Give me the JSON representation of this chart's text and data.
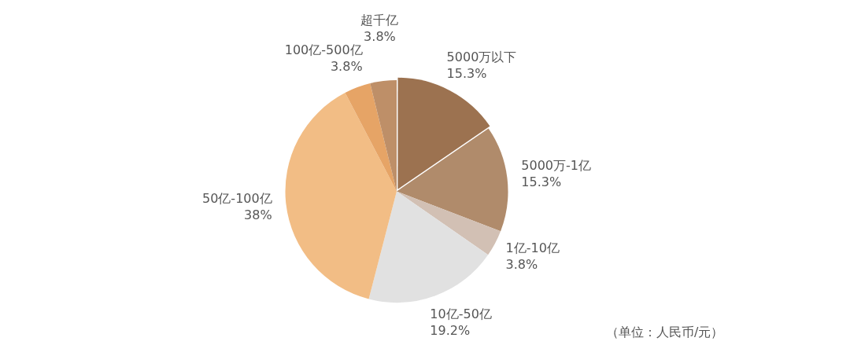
{
  "chart_data": {
    "type": "pie",
    "categories": [
      "5000万以下",
      "5000万-1亿",
      "1亿-10亿",
      "10亿-50亿",
      "50亿-100亿",
      "100亿-500亿",
      "超千亿"
    ],
    "values": [
      15.3,
      15.3,
      3.8,
      19.2,
      38,
      3.8,
      3.8
    ],
    "value_labels": [
      "15.3%",
      "15.3%",
      "3.8%",
      "19.2%",
      "38%",
      "3.8%",
      "3.8%"
    ],
    "colors": [
      "#9c7250",
      "#b08b6b",
      "#d2c0b4",
      "#e1e1e1",
      "#f2bd85",
      "#e6a466",
      "#be8f68"
    ],
    "legend": false,
    "annotations": [
      "（单位：人民币/元）"
    ]
  }
}
